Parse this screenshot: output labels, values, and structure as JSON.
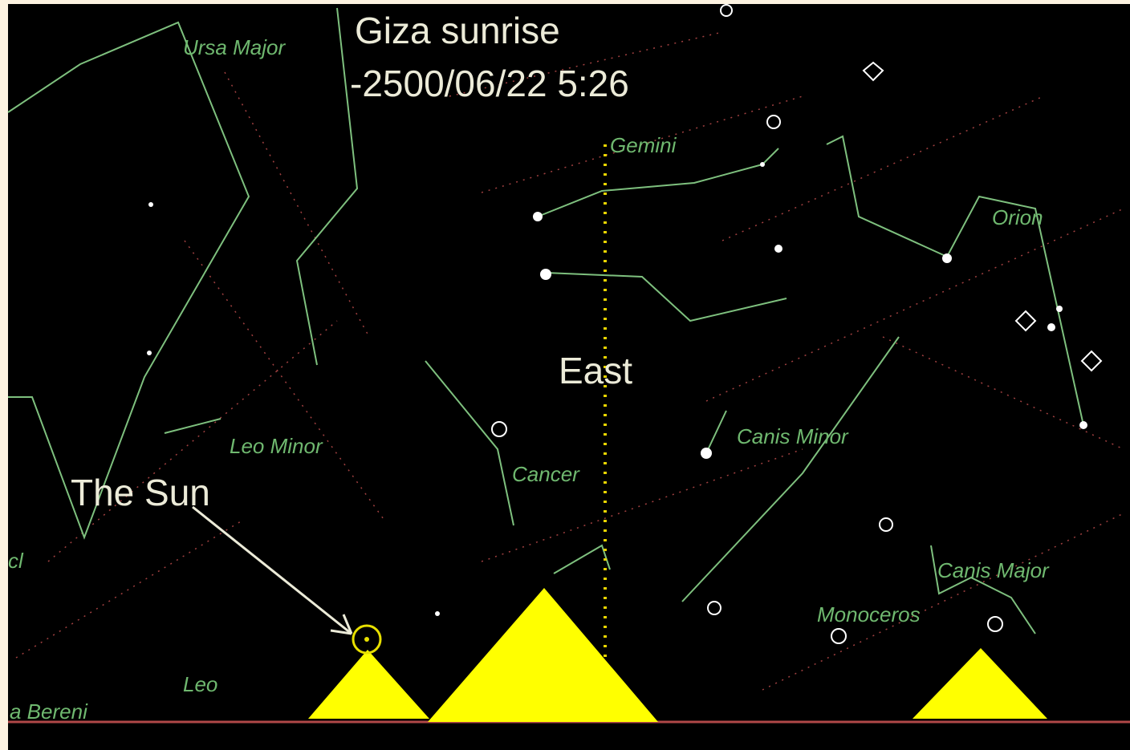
{
  "title": "Giza sunrise",
  "datetime": "-2500/06/22 5:26",
  "direction": "East",
  "sun_label": "The Sun",
  "constellations": [
    "Ursa Major",
    "Gemini",
    "Orion",
    "Leo Minor",
    "Cancer",
    "Canis Minor",
    "Canis Major",
    "Monoceros",
    "Leo",
    "a Bereni",
    "cl"
  ]
}
